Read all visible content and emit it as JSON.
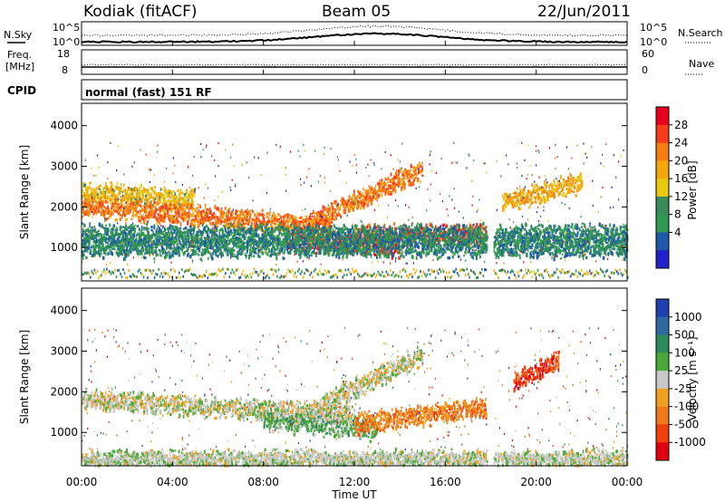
{
  "header": {
    "station": "Kodiak (fitACF)",
    "beam": "Beam 05",
    "date": "22/Jun/2011"
  },
  "nsky_panel": {
    "left_label": "N.Sky",
    "right_label": "N.Search",
    "left_ticks": [
      "10^5",
      "10^0"
    ],
    "right_ticks": [
      "10^5",
      "10^0"
    ]
  },
  "freq_panel": {
    "left_label_line1": "Freq.",
    "left_label_line2": "[MHz]",
    "right_label": "Nave",
    "left_ticks": [
      "18",
      "8"
    ],
    "right_ticks": [
      "60",
      "0"
    ]
  },
  "cpid": {
    "label": "CPID",
    "text": "normal (fast) 151 RF"
  },
  "power_colorbar": {
    "label": "Power [dB]",
    "ticks": [
      "28",
      "24",
      "20",
      "16",
      "12",
      "8",
      "4"
    ],
    "colors": [
      "#e8001e",
      "#f53c1c",
      "#f77c16",
      "#f5a60a",
      "#e8c810",
      "#3a8a5c",
      "#2e9a50",
      "#1e5aa8",
      "#2222cc"
    ]
  },
  "velocity_colorbar": {
    "label": "Velocity [m s⁻¹]",
    "ticks": [
      "1000",
      "500",
      "100",
      "25",
      "-25",
      "-100",
      "-500",
      "-1000"
    ],
    "colors": [
      "#2040b0",
      "#2e6aa0",
      "#2e8a5c",
      "#4aa838",
      "#c8c8c8",
      "#f0a020",
      "#f07818",
      "#f04010",
      "#e00010"
    ]
  },
  "chart_data": [
    {
      "type": "heatmap",
      "quantity": "Power",
      "ylabel": "Slant Range [km]",
      "ylim": [
        180,
        4550
      ],
      "y_ticks": [
        "1000",
        "2000",
        "3000",
        "4000"
      ],
      "x_ticks": [
        "00:00",
        "04:00",
        "08:00",
        "12:00",
        "16:00",
        "20:00",
        "00:00"
      ],
      "xlim_hours": [
        0,
        24
      ],
      "units": "dB",
      "scale_range": [
        0,
        30
      ],
      "data_gap_hours": [
        17.8,
        18.1
      ],
      "echo_bands": [
        {
          "t0": 0.0,
          "t1": 5.0,
          "range_km": [
            2350,
            2150
          ],
          "power_db": 16
        },
        {
          "t0": 0.0,
          "t1": 11.0,
          "range_km": [
            2000,
            1500
          ],
          "power_db": 22
        },
        {
          "t0": 9.0,
          "t1": 14.0,
          "range_km": [
            1200,
            1000
          ],
          "power_db": 26
        },
        {
          "t0": 10.0,
          "t1": 15.0,
          "range_km": [
            1600,
            2900
          ],
          "power_db": 22
        },
        {
          "t0": 12.0,
          "t1": 17.8,
          "range_km": [
            1300,
            1300
          ],
          "power_db": 24
        },
        {
          "t0": 0.0,
          "t1": 24.0,
          "range_km": [
            1300,
            1300
          ],
          "power_db": 8
        },
        {
          "t0": 0.0,
          "t1": 24.0,
          "range_km": [
            1000,
            1000
          ],
          "power_db": 8
        },
        {
          "t0": 18.5,
          "t1": 22.0,
          "range_km": [
            2100,
            2600
          ],
          "power_db": 18
        }
      ]
    },
    {
      "type": "heatmap",
      "quantity": "Velocity",
      "ylabel": "Slant Range [km]",
      "xlabel": "Time UT",
      "ylim": [
        180,
        4550
      ],
      "y_ticks": [
        "1000",
        "2000",
        "3000",
        "4000"
      ],
      "x_ticks": [
        "00:00",
        "04:00",
        "08:00",
        "12:00",
        "16:00",
        "20:00",
        "00:00"
      ],
      "xlim_hours": [
        0,
        24
      ],
      "units": "m s^-1",
      "scale_range": [
        -1000,
        1000
      ],
      "data_gap_hours": [
        17.8,
        18.1
      ],
      "echo_bands": [
        {
          "t0": 0.0,
          "t1": 12.0,
          "range_km": [
            1800,
            1400
          ],
          "velocity": 0
        },
        {
          "t0": 8.0,
          "t1": 13.0,
          "range_km": [
            1300,
            1050
          ],
          "velocity": 200
        },
        {
          "t0": 12.0,
          "t1": 17.8,
          "range_km": [
            1200,
            1600
          ],
          "velocity": -400
        },
        {
          "t0": 10.0,
          "t1": 15.0,
          "range_km": [
            1500,
            2900
          ],
          "velocity": 0
        },
        {
          "t0": 0.0,
          "t1": 24.0,
          "range_km": [
            300,
            300
          ],
          "velocity": 50
        },
        {
          "t0": 19.0,
          "t1": 21.0,
          "range_km": [
            2200,
            2800
          ],
          "velocity": -700
        }
      ]
    }
  ]
}
